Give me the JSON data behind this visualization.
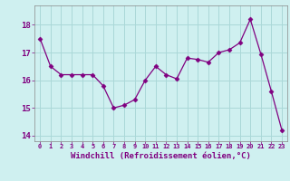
{
  "x": [
    0,
    1,
    2,
    3,
    4,
    5,
    6,
    7,
    8,
    9,
    10,
    11,
    12,
    13,
    14,
    15,
    16,
    17,
    18,
    19,
    20,
    21,
    22,
    23
  ],
  "y": [
    17.5,
    16.5,
    16.2,
    16.2,
    16.2,
    16.2,
    15.8,
    15.0,
    15.1,
    15.3,
    16.0,
    16.5,
    16.2,
    16.05,
    16.8,
    16.75,
    16.65,
    17.0,
    17.1,
    17.35,
    18.2,
    16.95,
    15.6,
    14.2
  ],
  "line_color": "#800080",
  "marker": "D",
  "marker_size": 2.5,
  "bg_color": "#cff0f0",
  "grid_color": "#aad8d8",
  "xlabel": "Windchill (Refroidissement éolien,°C)",
  "xlabel_color": "#800080",
  "tick_color": "#800080",
  "ylim": [
    13.8,
    18.7
  ],
  "yticks": [
    14,
    15,
    16,
    17,
    18
  ],
  "xtick_labels": [
    "0",
    "1",
    "2",
    "3",
    "4",
    "5",
    "6",
    "7",
    "8",
    "9",
    "10",
    "11",
    "12",
    "13",
    "14",
    "15",
    "16",
    "17",
    "18",
    "19",
    "20",
    "21",
    "22",
    "23"
  ],
  "spine_color": "#888888",
  "fig_bg": "#cff0f0"
}
